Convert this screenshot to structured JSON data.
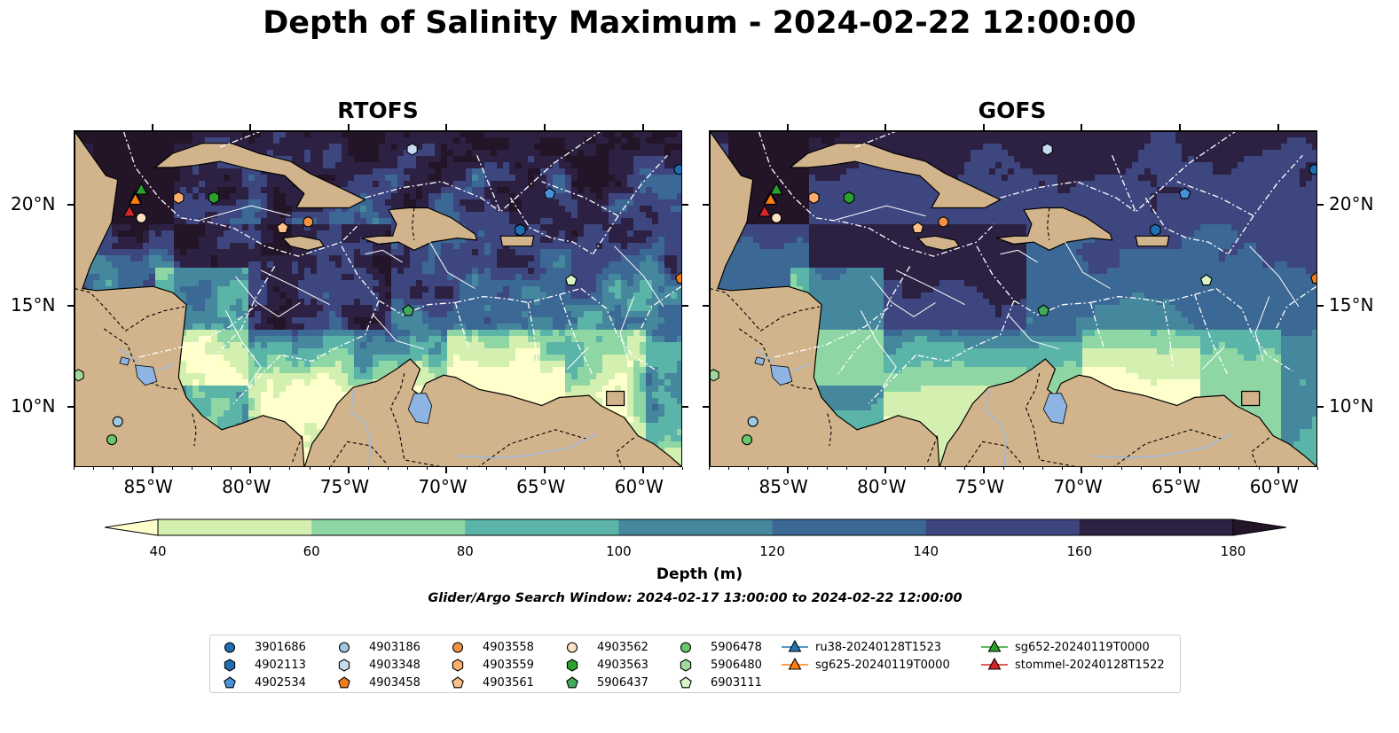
{
  "title": "Depth of Salinity Maximum - 2024-02-22 12:00:00",
  "panels": [
    {
      "title": "RTOFS"
    },
    {
      "title": "GOFS"
    }
  ],
  "map": {
    "lon_range": [
      -89,
      -58
    ],
    "lat_range": [
      7,
      23.7
    ],
    "lon_ticks": [
      "85°W",
      "80°W",
      "75°W",
      "70°W",
      "65°W",
      "60°W"
    ],
    "lat_ticks": [
      "20°N",
      "15°N",
      "10°N"
    ],
    "land_color": "#d2b48c",
    "lake_color": "#8eb4e3"
  },
  "colorbar": {
    "title": "Depth (m)",
    "ticks": [
      "40",
      "60",
      "80",
      "100",
      "120",
      "140",
      "160",
      "180"
    ],
    "colors": [
      "#ffffcc",
      "#d4f0b0",
      "#8ed6a4",
      "#5ab4a8",
      "#45879c",
      "#3b6894",
      "#3e4680",
      "#2c2142",
      "#231428"
    ]
  },
  "search_window": "Glider/Argo Search Window: 2024-02-17 13:00:00 to 2024-02-22 12:00:00",
  "legend": {
    "argo": [
      {
        "label": "3901686",
        "marker": "circle",
        "color": "#1f6eb4"
      },
      {
        "label": "4902113",
        "marker": "hexagon",
        "color": "#1f6eb4"
      },
      {
        "label": "4902534",
        "marker": "pentagon",
        "color": "#4a90d9"
      },
      {
        "label": "4903186",
        "marker": "circle",
        "color": "#9ecae1"
      },
      {
        "label": "4903348",
        "marker": "hexagon",
        "color": "#c6dbef"
      },
      {
        "label": "4903458",
        "marker": "pentagon",
        "color": "#f07d1a"
      },
      {
        "label": "4903558",
        "marker": "circle",
        "color": "#f39240"
      },
      {
        "label": "4903559",
        "marker": "hexagon",
        "color": "#fdae6b"
      },
      {
        "label": "4903561",
        "marker": "pentagon",
        "color": "#fdc086"
      },
      {
        "label": "4903562",
        "marker": "circle",
        "color": "#fee0c4"
      },
      {
        "label": "4903563",
        "marker": "hexagon",
        "color": "#2ca02c"
      },
      {
        "label": "5906437",
        "marker": "pentagon",
        "color": "#41ab5d"
      },
      {
        "label": "5906478",
        "marker": "circle",
        "color": "#6cc66c"
      },
      {
        "label": "5906480",
        "marker": "hexagon",
        "color": "#a1d99b"
      },
      {
        "label": "6903111",
        "marker": "pentagon",
        "color": "#d9f5c8"
      }
    ],
    "gliders": [
      {
        "label": "ru38-20240128T1523",
        "color": "#1f77b4"
      },
      {
        "label": "sg625-20240119T0000",
        "color": "#ff7f0e"
      },
      {
        "label": "sg652-20240119T0000",
        "color": "#2ca02c"
      },
      {
        "label": "stommel-20240128T1522",
        "color": "#d62728"
      }
    ]
  },
  "observations": [
    {
      "id": "3901686",
      "lon": -58.2,
      "lat": 21.8
    },
    {
      "id": "4902113",
      "lon": -66.3,
      "lat": 18.8
    },
    {
      "id": "4902534",
      "lon": -64.8,
      "lat": 20.6
    },
    {
      "id": "4903186",
      "lon": -86.8,
      "lat": 9.3
    },
    {
      "id": "4903348",
      "lon": -71.8,
      "lat": 22.8
    },
    {
      "id": "4903458",
      "lon": -58.1,
      "lat": 16.4
    },
    {
      "id": "4903558",
      "lon": -77.1,
      "lat": 19.2
    },
    {
      "id": "4903559",
      "lon": -83.7,
      "lat": 20.4
    },
    {
      "id": "4903561",
      "lon": -78.4,
      "lat": 18.9
    },
    {
      "id": "4903562",
      "lon": -85.6,
      "lat": 19.4
    },
    {
      "id": "4903563",
      "lon": -81.9,
      "lat": 20.4
    },
    {
      "id": "5906437",
      "lon": -72.0,
      "lat": 14.8
    },
    {
      "id": "5906478",
      "lon": -87.1,
      "lat": 8.4
    },
    {
      "id": "5906480",
      "lon": -88.8,
      "lat": 11.6
    },
    {
      "id": "6903111",
      "lon": -63.7,
      "lat": 16.3
    }
  ],
  "glider_positions": [
    {
      "id": "ru38-20240128T1523",
      "lon": -85.9,
      "lat": 20.4
    },
    {
      "id": "sg625-20240119T0000",
      "lon": -85.9,
      "lat": 20.3
    },
    {
      "id": "sg652-20240119T0000",
      "lon": -85.6,
      "lat": 20.8
    },
    {
      "id": "stommel-20240128T1522",
      "lon": -86.2,
      "lat": 19.7
    }
  ]
}
